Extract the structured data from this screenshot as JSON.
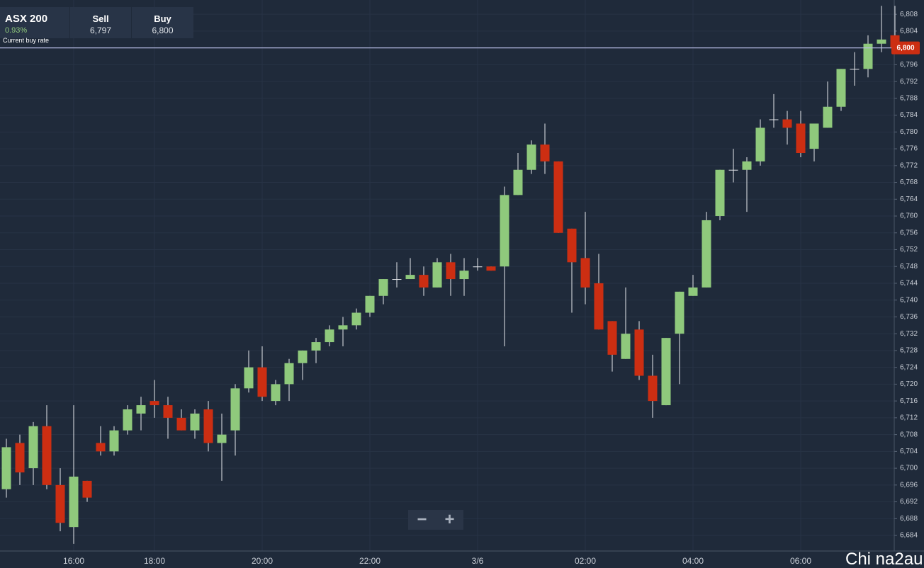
{
  "header": {
    "symbol": "ASX 200",
    "change": "0.93%",
    "sell_label": "Sell",
    "sell": "6,797",
    "buy_label": "Buy",
    "buy": "6,800",
    "rate_caption": "Current buy rate"
  },
  "watermark": "Chi na2au",
  "chart_data": {
    "type": "candlestick",
    "categories": [
      null,
      null,
      null,
      null,
      null,
      "16:00",
      null,
      null,
      null,
      null,
      null,
      "18:00",
      null,
      null,
      null,
      null,
      null,
      null,
      null,
      "20:00",
      null,
      null,
      null,
      null,
      null,
      null,
      null,
      "22:00",
      null,
      null,
      null,
      null,
      null,
      null,
      null,
      "3/6",
      null,
      null,
      null,
      null,
      null,
      null,
      null,
      "02:00",
      null,
      null,
      null,
      null,
      null,
      null,
      null,
      "04:00",
      null,
      null,
      null,
      null,
      null,
      null,
      null,
      "06:00",
      null,
      null,
      null,
      null,
      null,
      null,
      null
    ],
    "open": [
      6695,
      6706,
      6700,
      6710,
      6696,
      6686,
      6697,
      6706,
      6704,
      6709,
      6713,
      6716,
      6715,
      6712,
      6709,
      6714,
      6706,
      6709,
      6719,
      6724,
      6716,
      6720,
      6725,
      6728,
      6730,
      6733,
      6734,
      6737,
      6741,
      6745,
      6745,
      6746,
      6743,
      6749,
      6745,
      6748,
      6748,
      6748,
      6765,
      6771,
      6777,
      6773,
      6757,
      6750,
      6744,
      6735,
      6726,
      6733,
      6722,
      6715,
      6732,
      6741,
      6743,
      6760,
      6771,
      6771,
      6773,
      6783,
      6783,
      6782,
      6776,
      6781,
      6786,
      6795,
      6795,
      6801,
      6803
    ],
    "high": [
      6707,
      6708,
      6711,
      6715,
      6700,
      6715,
      6697,
      6710,
      6710,
      6715,
      6717,
      6721,
      6717,
      6714,
      6714,
      6716,
      6713,
      6720,
      6728,
      6729,
      6721,
      6726,
      6728,
      6731,
      6734,
      6736,
      6738,
      6741,
      6745,
      6749,
      6750,
      6748,
      6750,
      6751,
      6750,
      6750,
      6748,
      6767,
      6775,
      6778,
      6782,
      6773,
      6757,
      6761,
      6751,
      6735,
      6743,
      6735,
      6727,
      6731,
      6742,
      6746,
      6761,
      6771,
      6776,
      6774,
      6783,
      6789,
      6785,
      6785,
      6782,
      6792,
      6795,
      6799,
      6803,
      6810,
      6810
    ],
    "low": [
      6693,
      6696,
      6696,
      6695,
      6685,
      6682,
      6692,
      6703,
      6703,
      6708,
      6709,
      6712,
      6707,
      6709,
      6707,
      6704,
      6697,
      6703,
      6718,
      6716,
      6715,
      6716,
      6721,
      6725,
      6729,
      6729,
      6733,
      6736,
      6739,
      6743,
      6745,
      6741,
      6743,
      6741,
      6741,
      6747,
      6747,
      6729,
      6765,
      6770,
      6770,
      6756,
      6737,
      6739,
      6733,
      6723,
      6726,
      6721,
      6712,
      6715,
      6720,
      6741,
      6743,
      6759,
      6768,
      6761,
      6772,
      6781,
      6777,
      6774,
      6773,
      6781,
      6785,
      6791,
      6793,
      6799,
      6799
    ],
    "close": [
      6705,
      6699,
      6710,
      6696,
      6687,
      6698,
      6693,
      6704,
      6709,
      6714,
      6715,
      6715,
      6712,
      6709,
      6713,
      6706,
      6708,
      6719,
      6724,
      6717,
      6720,
      6725,
      6728,
      6730,
      6733,
      6734,
      6737,
      6741,
      6745,
      6745,
      6746,
      6743,
      6749,
      6745,
      6747,
      6748,
      6747,
      6765,
      6771,
      6777,
      6773,
      6756,
      6749,
      6743,
      6733,
      6727,
      6732,
      6722,
      6716,
      6731,
      6742,
      6743,
      6759,
      6771,
      6771,
      6773,
      6781,
      6783,
      6781,
      6775,
      6782,
      6786,
      6795,
      6795,
      6801,
      6802,
      6800
    ],
    "up_color": "#8fc97c",
    "down_color": "#cc2e12",
    "flat_color": "#e6e8ec",
    "ylim": [
      6680.3,
      6811.4
    ],
    "yticks": [
      {
        "value": 6684,
        "label": "6,684"
      },
      {
        "value": 6688,
        "label": "6,688"
      },
      {
        "value": 6692,
        "label": "6,692"
      },
      {
        "value": 6696,
        "label": "6,696"
      },
      {
        "value": 6700,
        "label": "6,700"
      },
      {
        "value": 6704,
        "label": "6,704"
      },
      {
        "value": 6708,
        "label": "6,708"
      },
      {
        "value": 6712,
        "label": "6,712"
      },
      {
        "value": 6716,
        "label": "6,716"
      },
      {
        "value": 6720,
        "label": "6,720"
      },
      {
        "value": 6724,
        "label": "6,724"
      },
      {
        "value": 6728,
        "label": "6,728"
      },
      {
        "value": 6732,
        "label": "6,732"
      },
      {
        "value": 6736,
        "label": "6,736"
      },
      {
        "value": 6740,
        "label": "6,740"
      },
      {
        "value": 6744,
        "label": "6,744"
      },
      {
        "value": 6748,
        "label": "6,748"
      },
      {
        "value": 6752,
        "label": "6,752"
      },
      {
        "value": 6756,
        "label": "6,756"
      },
      {
        "value": 6760,
        "label": "6,760"
      },
      {
        "value": 6764,
        "label": "6,764"
      },
      {
        "value": 6768,
        "label": "6,768"
      },
      {
        "value": 6772,
        "label": "6,772"
      },
      {
        "value": 6776,
        "label": "6,776"
      },
      {
        "value": 6780,
        "label": "6,780"
      },
      {
        "value": 6784,
        "label": "6,784"
      },
      {
        "value": 6788,
        "label": "6,788"
      },
      {
        "value": 6792,
        "label": "6,792"
      },
      {
        "value": 6796,
        "label": "6,796"
      },
      {
        "value": 6800,
        "label": "6,800"
      },
      {
        "value": 6804,
        "label": "6,804"
      },
      {
        "value": 6808,
        "label": "6,808"
      }
    ],
    "grid": true,
    "price_line": {
      "value": 6800,
      "label": "6,800",
      "color": "#b8bde6",
      "label_color": "#cc2e12"
    }
  }
}
